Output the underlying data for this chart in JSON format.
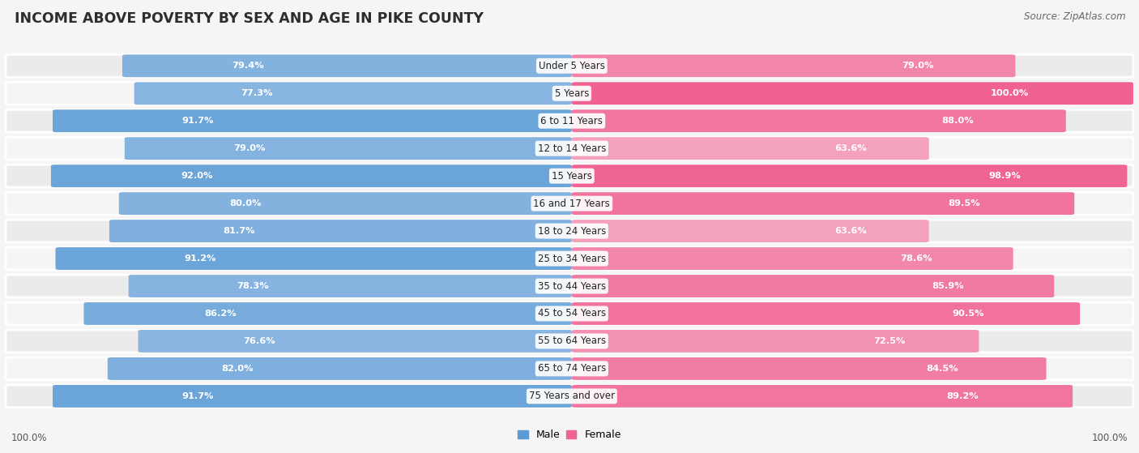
{
  "title": "INCOME ABOVE POVERTY BY SEX AND AGE IN PIKE COUNTY",
  "source": "Source: ZipAtlas.com",
  "categories": [
    "Under 5 Years",
    "5 Years",
    "6 to 11 Years",
    "12 to 14 Years",
    "15 Years",
    "16 and 17 Years",
    "18 to 24 Years",
    "25 to 34 Years",
    "35 to 44 Years",
    "45 to 54 Years",
    "55 to 64 Years",
    "65 to 74 Years",
    "75 Years and over"
  ],
  "male_values": [
    79.4,
    77.3,
    91.7,
    79.0,
    92.0,
    80.0,
    81.7,
    91.2,
    78.3,
    86.2,
    76.6,
    82.0,
    91.7
  ],
  "female_values": [
    79.0,
    100.0,
    88.0,
    63.6,
    98.9,
    89.5,
    63.6,
    78.6,
    85.9,
    90.5,
    72.5,
    84.5,
    89.2
  ],
  "male_dark": "#5b9bd5",
  "male_light": "#aac8e8",
  "female_dark": "#f06292",
  "female_light": "#f4a7c0",
  "row_bg_odd": "#ebebeb",
  "row_bg_even": "#f5f5f5",
  "background_color": "#f5f5f5",
  "max_value": 100.0,
  "title_fontsize": 12.5,
  "val_fontsize": 8.2,
  "cat_fontsize": 8.5,
  "source_fontsize": 8.5
}
